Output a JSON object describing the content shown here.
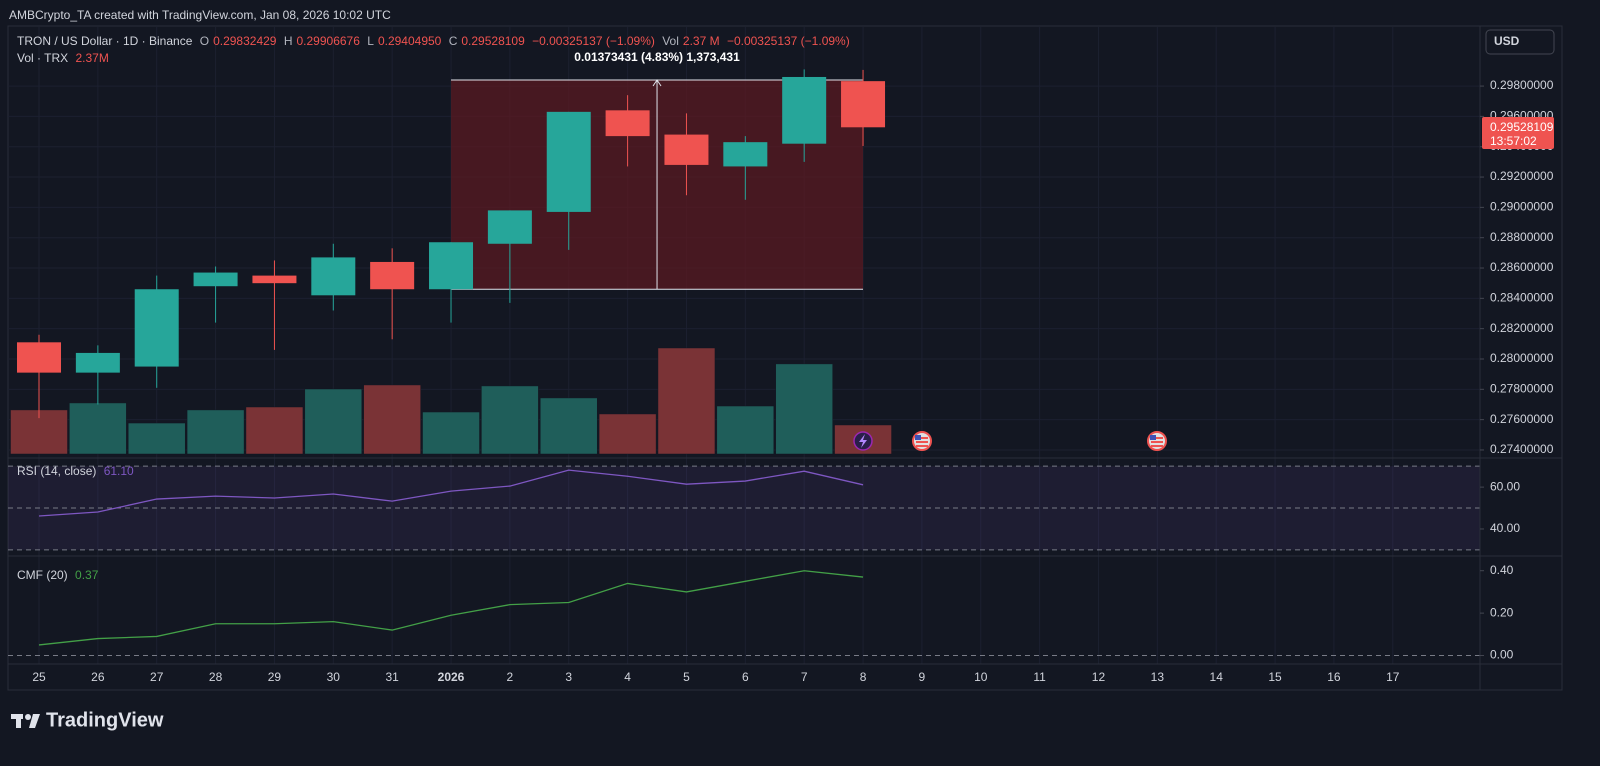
{
  "attribution": "AMBCrypto_TA created with TradingView.com, Jan 08, 2026 10:02 UTC",
  "legend": {
    "symbol": "TRON / US Dollar · 1D · Binance",
    "items": [
      {
        "key": "O",
        "value": "0.29832429"
      },
      {
        "key": "H",
        "value": "0.29906676"
      },
      {
        "key": "L",
        "value": "0.29404950"
      },
      {
        "key": "C",
        "value": "0.29528109"
      }
    ],
    "change": "−0.00325137 (−1.09%)",
    "vol_key": "Vol",
    "vol_value": "2.37 M",
    "vol_change": "−0.00325137 (−1.09%)",
    "volume_title": "Vol · TRX",
    "volume_value": "2.37M"
  },
  "currency": "USD",
  "price_label": {
    "price": "0.29528109",
    "countdown": "13:57:02"
  },
  "logo": "TradingView",
  "chart_data": [
    {
      "type": "candlestick",
      "categories": [
        "25",
        "26",
        "27",
        "28",
        "29",
        "30",
        "31",
        "2026",
        "2",
        "3",
        "4",
        "5",
        "6",
        "7",
        "8",
        "9",
        "10",
        "11",
        "12",
        "13",
        "14",
        "15",
        "16",
        "17"
      ],
      "open": [
        0.2811,
        0.2791,
        0.2795,
        0.2848,
        0.2855,
        0.2842,
        0.2864,
        0.2846,
        0.2876,
        0.2897,
        0.2964,
        0.2948,
        0.2927,
        0.2942,
        0.29832429,
        null,
        null,
        null,
        null,
        null,
        null,
        null,
        null,
        null
      ],
      "high": [
        0.2816,
        0.2809,
        0.2855,
        0.2861,
        0.2865,
        0.2876,
        0.2873,
        0.2877,
        0.2898,
        0.2963,
        0.2974,
        0.2962,
        0.2947,
        0.2991,
        0.29906676,
        null,
        null,
        null,
        null,
        null,
        null,
        null,
        null,
        null
      ],
      "low": [
        0.2761,
        0.277,
        0.2781,
        0.2824,
        0.2806,
        0.2832,
        0.2813,
        0.2824,
        0.2837,
        0.2872,
        0.2927,
        0.2908,
        0.2905,
        0.293,
        0.2940495,
        null,
        null,
        null,
        null,
        null,
        null,
        null,
        null,
        null
      ],
      "close": [
        0.2791,
        0.2804,
        0.2846,
        0.2857,
        0.285,
        0.2867,
        0.2846,
        0.2877,
        0.2898,
        0.2963,
        0.2947,
        0.2928,
        0.2943,
        0.2986,
        0.29528109,
        null,
        null,
        null,
        null,
        null,
        null,
        null,
        null,
        null
      ],
      "up_color": "#26a69a",
      "down_color": "#ef5350",
      "ylim": [
        0.27347,
        0.30183
      ],
      "yticks": [
        {
          "value": 0.274,
          "label": "0.27400000"
        },
        {
          "value": 0.276,
          "label": "0.27600000"
        },
        {
          "value": 0.278,
          "label": "0.27800000"
        },
        {
          "value": 0.28,
          "label": "0.28000000"
        },
        {
          "value": 0.282,
          "label": "0.28200000"
        },
        {
          "value": 0.284,
          "label": "0.28400000"
        },
        {
          "value": 0.286,
          "label": "0.28600000"
        },
        {
          "value": 0.288,
          "label": "0.28800000"
        },
        {
          "value": 0.29,
          "label": "0.29000000"
        },
        {
          "value": 0.292,
          "label": "0.29200000"
        },
        {
          "value": 0.294,
          "label": "0.29400000"
        },
        {
          "value": 0.296,
          "label": "0.29600000"
        },
        {
          "value": 0.298,
          "label": "0.29800000"
        }
      ],
      "grid": true,
      "annotation": {
        "text": "0.01373431 (4.83%) 1,373,431",
        "start": 0.2846,
        "end": 0.2984,
        "color": "#5a1a22"
      }
    },
    {
      "type": "bar",
      "values": [
        3.6,
        4.17,
        2.53,
        3.6,
        3.84,
        5.31,
        5.64,
        3.43,
        5.56,
        4.58,
        3.27,
        8.66,
        3.92,
        7.36,
        2.37,
        null,
        null,
        null,
        null,
        null,
        null,
        null,
        null,
        null
      ],
      "up_color": "#1f5e5a",
      "down_color": "#7a3336",
      "ylim": [
        0,
        34.8
      ]
    },
    {
      "type": "line",
      "title": "RSI (14, close)",
      "legend_value": "61.10",
      "color": "#7e57c2",
      "values": [
        46.2,
        48.1,
        54.3,
        55.7,
        54.8,
        56.7,
        53.3,
        58.1,
        60.5,
        68.1,
        65.2,
        61.4,
        62.9,
        67.6,
        61.1,
        null,
        null,
        null,
        null,
        null,
        null,
        null,
        null,
        null
      ],
      "ylim": [
        29,
        72
      ],
      "yticks": [
        {
          "value": 40,
          "label": "40.00"
        },
        {
          "value": 60,
          "label": "60.00"
        }
      ],
      "levels": [
        30,
        50,
        70
      ]
    },
    {
      "type": "line",
      "title": "CMF (20)",
      "legend_value": "0.37",
      "color": "#43a047",
      "values": [
        0.05,
        0.08,
        0.09,
        0.15,
        0.15,
        0.16,
        0.12,
        0.19,
        0.24,
        0.25,
        0.34,
        0.3,
        0.35,
        0.4,
        0.37,
        null,
        null,
        null,
        null,
        null,
        null,
        null,
        null,
        null
      ],
      "ylim": [
        -0.04,
        0.46
      ],
      "yticks": [
        {
          "value": 0,
          "label": "0.00"
        },
        {
          "value": 0.2,
          "label": "0.20"
        },
        {
          "value": 0.4,
          "label": "0.40"
        }
      ],
      "levels": [
        0
      ]
    }
  ]
}
